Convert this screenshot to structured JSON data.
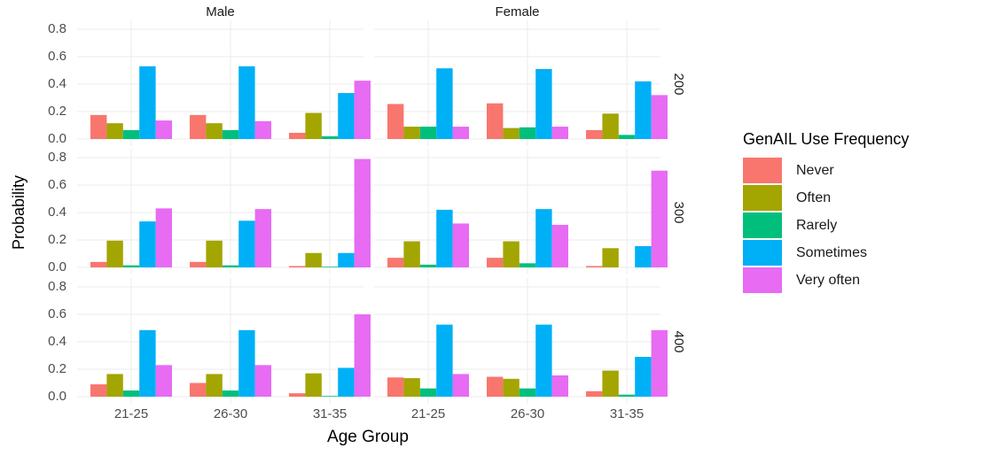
{
  "chart_data": {
    "type": "bar",
    "x_label": "Age Group",
    "y_label": "Probability",
    "legend_title": "GenAIL Use Frequency",
    "categories": [
      "21-25",
      "26-30",
      "31-35"
    ],
    "ylim": [
      0,
      0.8
    ],
    "yticks": [
      {
        "value": 0,
        "label": "0.0"
      },
      0.2,
      0.4,
      0.6,
      0.8
    ],
    "grid": true,
    "series": [
      {
        "name": "Never",
        "color": "#f8766d"
      },
      {
        "name": "Often",
        "color": "#a3a500"
      },
      {
        "name": "Rarely",
        "color": "#00bf7d"
      },
      {
        "name": "Sometimes",
        "color": "#00b0f6"
      },
      {
        "name": "Very often",
        "color": "#e76bf3"
      }
    ],
    "facet_columns": [
      "Male",
      "Female"
    ],
    "facet_rows": [
      {
        "label": "200",
        "panels": [
          {
            "series": [
              {
                "values": [
                  0.175,
                  0.175,
                  0.045
                ]
              },
              {
                "values": [
                  0.115,
                  0.115,
                  0.19
                ]
              },
              {
                "values": [
                  0.065,
                  0.065,
                  0.02
                ]
              },
              {
                "values": [
                  0.53,
                  0.53,
                  0.335
                ]
              },
              {
                "values": [
                  0.135,
                  0.13,
                  0.425
                ]
              }
            ]
          },
          {
            "series": [
              {
                "values": [
                  0.255,
                  0.26,
                  0.065
                ]
              },
              {
                "values": [
                  0.09,
                  0.08,
                  0.185
                ]
              },
              {
                "values": [
                  0.09,
                  0.085,
                  0.03
                ]
              },
              {
                "values": [
                  0.515,
                  0.51,
                  0.42
                ]
              },
              {
                "values": [
                  0.09,
                  0.09,
                  0.32
                ]
              }
            ]
          }
        ]
      },
      {
        "label": "300",
        "panels": [
          {
            "series": [
              {
                "values": [
                  0.04,
                  0.04,
                  0.01
                ]
              },
              {
                "values": [
                  0.195,
                  0.195,
                  0.105
                ]
              },
              {
                "values": [
                  0.015,
                  0.015,
                  0.005
                ]
              },
              {
                "values": [
                  0.335,
                  0.34,
                  0.105
                ]
              },
              {
                "values": [
                  0.43,
                  0.425,
                  0.79
                ]
              }
            ]
          },
          {
            "series": [
              {
                "values": [
                  0.07,
                  0.07,
                  0.01
                ]
              },
              {
                "values": [
                  0.19,
                  0.19,
                  0.14
                ]
              },
              {
                "values": [
                  0.02,
                  0.03,
                  0.0
                ]
              },
              {
                "values": [
                  0.42,
                  0.425,
                  0.155
                ]
              },
              {
                "values": [
                  0.32,
                  0.31,
                  0.705
                ]
              }
            ]
          }
        ]
      },
      {
        "label": "400",
        "panels": [
          {
            "series": [
              {
                "values": [
                  0.09,
                  0.1,
                  0.025
                ]
              },
              {
                "values": [
                  0.165,
                  0.165,
                  0.17
                ]
              },
              {
                "values": [
                  0.045,
                  0.045,
                  0.005
                ]
              },
              {
                "values": [
                  0.485,
                  0.485,
                  0.21
                ]
              },
              {
                "values": [
                  0.23,
                  0.23,
                  0.6
                ]
              }
            ]
          },
          {
            "series": [
              {
                "values": [
                  0.14,
                  0.145,
                  0.04
                ]
              },
              {
                "values": [
                  0.135,
                  0.13,
                  0.19
                ]
              },
              {
                "values": [
                  0.06,
                  0.06,
                  0.015
                ]
              },
              {
                "values": [
                  0.525,
                  0.525,
                  0.29
                ]
              },
              {
                "values": [
                  0.165,
                  0.155,
                  0.485
                ]
              }
            ]
          }
        ]
      }
    ]
  }
}
